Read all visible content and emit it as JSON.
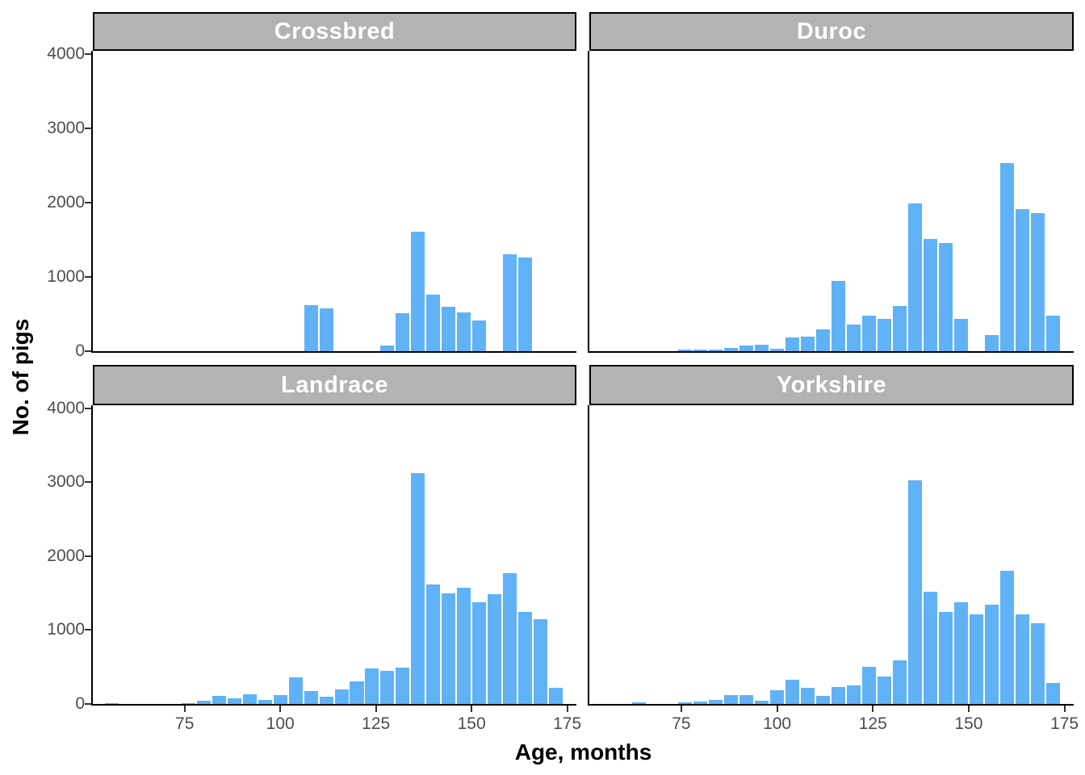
{
  "chart_data": {
    "type": "bar",
    "subtype": "faceted-histogram",
    "title": "",
    "xlabel": "Age, months",
    "ylabel": "No. of pigs",
    "x_ticks": [
      75,
      100,
      125,
      150,
      175
    ],
    "y_ticks": [
      0,
      1000,
      2000,
      3000,
      4000
    ],
    "x_domain": [
      51,
      177.4
    ],
    "y_domain": [
      0,
      4040
    ],
    "bin_width_months": 4,
    "legend": "none",
    "grid": "off",
    "colors": {
      "bar_fill": "#60b2f6",
      "strip_background": "#b3b3b3",
      "strip_border": "#000000",
      "strip_text": "#ffffff",
      "axis_line": "#000000",
      "tick_mark": "#333333",
      "tick_label": "#4d4d4d",
      "axis_title": "#000000"
    },
    "facets": [
      {
        "label": "Crossbred",
        "bars": [
          [
            108,
            620
          ],
          [
            112,
            575
          ],
          [
            128,
            75
          ],
          [
            132,
            510
          ],
          [
            136,
            1610
          ],
          [
            140,
            755
          ],
          [
            144,
            595
          ],
          [
            148,
            525
          ],
          [
            152,
            410
          ],
          [
            160,
            1300
          ],
          [
            164,
            1255
          ]
        ]
      },
      {
        "label": "Duroc",
        "bars": [
          [
            76,
            20
          ],
          [
            80,
            20
          ],
          [
            84,
            18
          ],
          [
            88,
            45
          ],
          [
            92,
            75
          ],
          [
            96,
            85
          ],
          [
            100,
            35
          ],
          [
            104,
            185
          ],
          [
            108,
            195
          ],
          [
            112,
            290
          ],
          [
            116,
            940
          ],
          [
            120,
            360
          ],
          [
            124,
            480
          ],
          [
            128,
            430
          ],
          [
            132,
            610
          ],
          [
            136,
            1990
          ],
          [
            140,
            1515
          ],
          [
            144,
            1455
          ],
          [
            148,
            435
          ],
          [
            156,
            220
          ],
          [
            160,
            2530
          ],
          [
            164,
            1915
          ],
          [
            168,
            1860
          ],
          [
            172,
            480
          ]
        ]
      },
      {
        "label": "Landrace",
        "bars": [
          [
            56,
            15
          ],
          [
            76,
            12
          ],
          [
            80,
            45
          ],
          [
            84,
            105
          ],
          [
            88,
            75
          ],
          [
            92,
            130
          ],
          [
            96,
            60
          ],
          [
            100,
            115
          ],
          [
            104,
            365
          ],
          [
            108,
            180
          ],
          [
            112,
            100
          ],
          [
            116,
            200
          ],
          [
            120,
            310
          ],
          [
            124,
            480
          ],
          [
            128,
            450
          ],
          [
            132,
            495
          ],
          [
            136,
            3125
          ],
          [
            140,
            1620
          ],
          [
            144,
            1500
          ],
          [
            148,
            1575
          ],
          [
            152,
            1380
          ],
          [
            156,
            1480
          ],
          [
            160,
            1765
          ],
          [
            164,
            1250
          ],
          [
            168,
            1150
          ],
          [
            172,
            215
          ]
        ]
      },
      {
        "label": "Yorkshire",
        "bars": [
          [
            64,
            25
          ],
          [
            76,
            18
          ],
          [
            80,
            37
          ],
          [
            84,
            60
          ],
          [
            88,
            115
          ],
          [
            92,
            125
          ],
          [
            96,
            45
          ],
          [
            100,
            185
          ],
          [
            104,
            325
          ],
          [
            108,
            220
          ],
          [
            112,
            110
          ],
          [
            116,
            225
          ],
          [
            120,
            255
          ],
          [
            124,
            500
          ],
          [
            128,
            375
          ],
          [
            132,
            590
          ],
          [
            136,
            3030
          ],
          [
            140,
            1515
          ],
          [
            144,
            1240
          ],
          [
            148,
            1375
          ],
          [
            152,
            1215
          ],
          [
            156,
            1340
          ],
          [
            160,
            1800
          ],
          [
            164,
            1215
          ],
          [
            168,
            1095
          ],
          [
            172,
            285
          ]
        ]
      }
    ]
  }
}
